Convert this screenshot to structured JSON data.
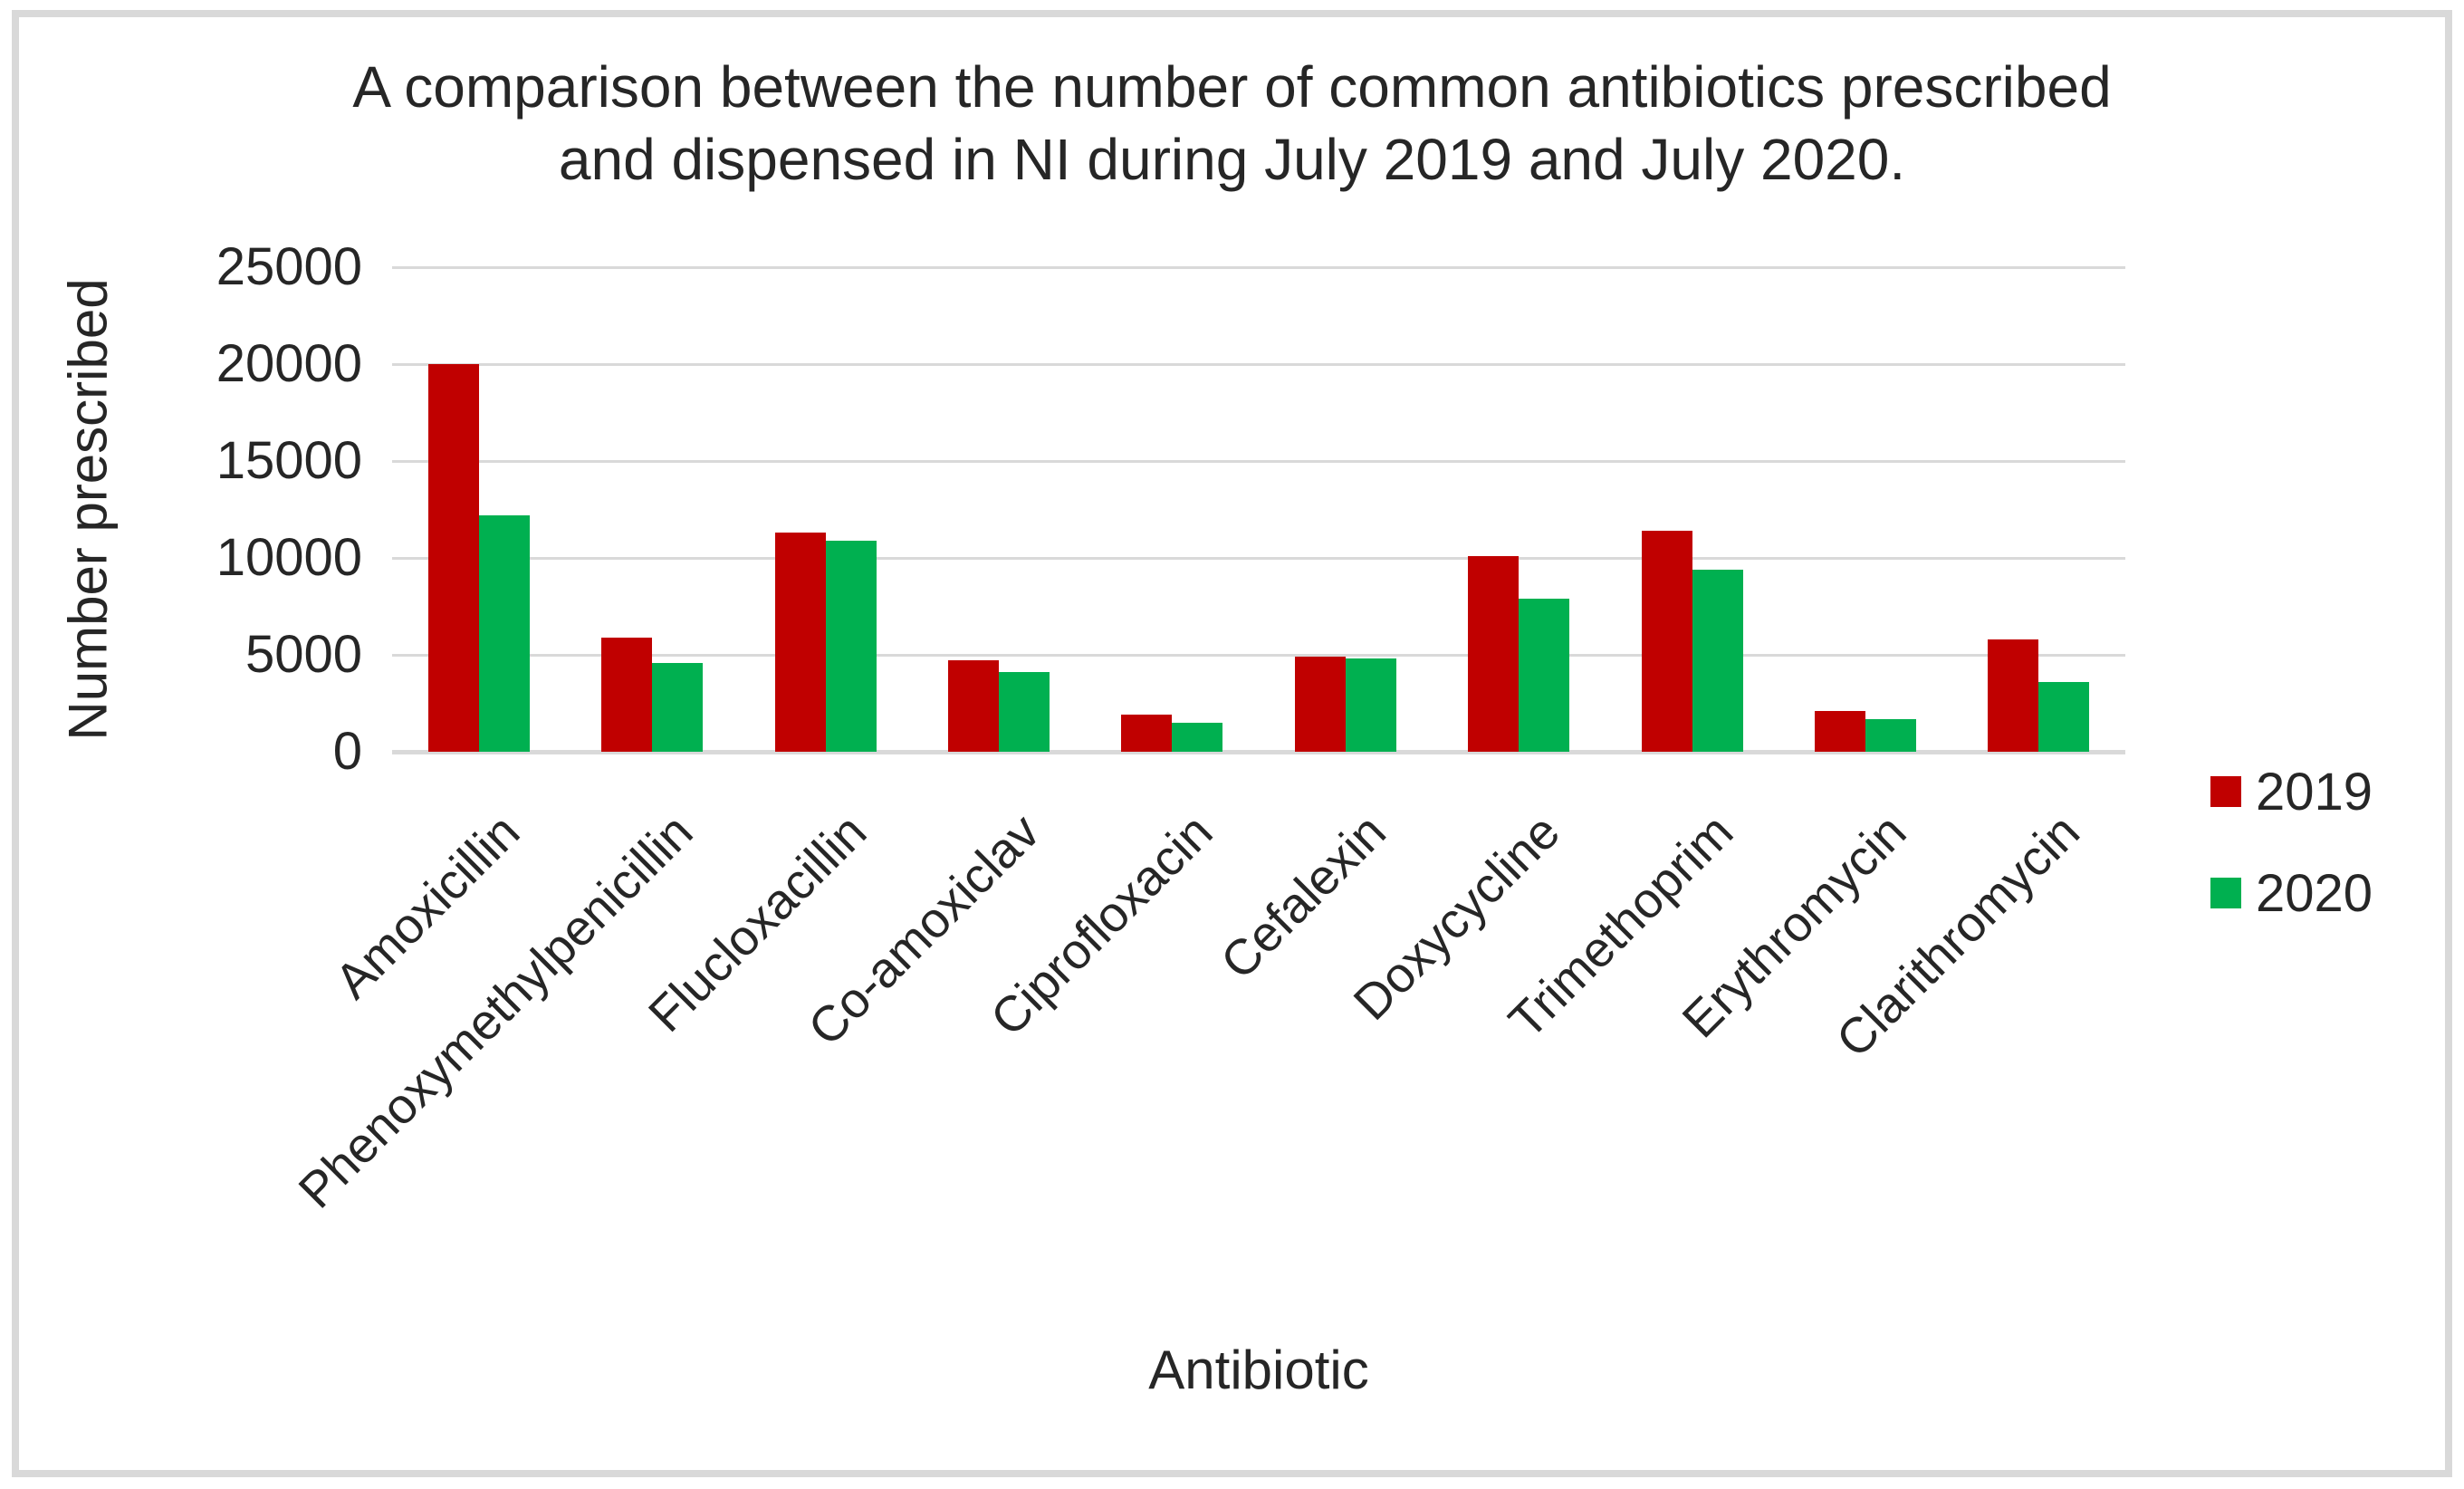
{
  "chart_data": {
    "type": "bar",
    "title": "A comparison between the number of common antibiotics prescribed and dispensed in NI during July 2019 and July 2020.",
    "title_lines": [
      "A comparison between the number of common antibiotics prescribed",
      "and dispensed in NI during July 2019 and July 2020."
    ],
    "xlabel": "Antibiotic",
    "ylabel": "Number prescribed",
    "categories": [
      "Amoxicillin",
      "Phenoxymethylpenicillin",
      "Flucloxacillin",
      "Co-amoxiclav",
      "Ciprofloxacin",
      "Cefalexin",
      "Doxycycline",
      "Trimethoprim",
      "Erythromycin",
      "Clarithromycin"
    ],
    "series": [
      {
        "name": "2019",
        "color": "#C00000",
        "values": [
          20000,
          5900,
          11300,
          4700,
          1900,
          4900,
          10100,
          11400,
          2100,
          5800
        ]
      },
      {
        "name": "2020",
        "color": "#00B050",
        "values": [
          12200,
          4600,
          10900,
          4100,
          1500,
          4800,
          7900,
          9400,
          1700,
          3600
        ]
      }
    ],
    "ylim": [
      0,
      25000
    ],
    "y_ticks": [
      0,
      5000,
      10000,
      15000,
      20000,
      25000
    ],
    "grid": "horizontal",
    "legend_position": "right"
  },
  "legend": {
    "items": [
      {
        "label": "2019",
        "color": "#C00000"
      },
      {
        "label": "2020",
        "color": "#00B050"
      }
    ]
  },
  "colors": {
    "bar_2019": "#C00000",
    "bar_2020": "#00B050",
    "gridline": "#D9D9D9",
    "axis_line": "#D9D9D9",
    "frame_border": "#D9D9D9",
    "text": "#262626",
    "background": "#FFFFFF"
  }
}
